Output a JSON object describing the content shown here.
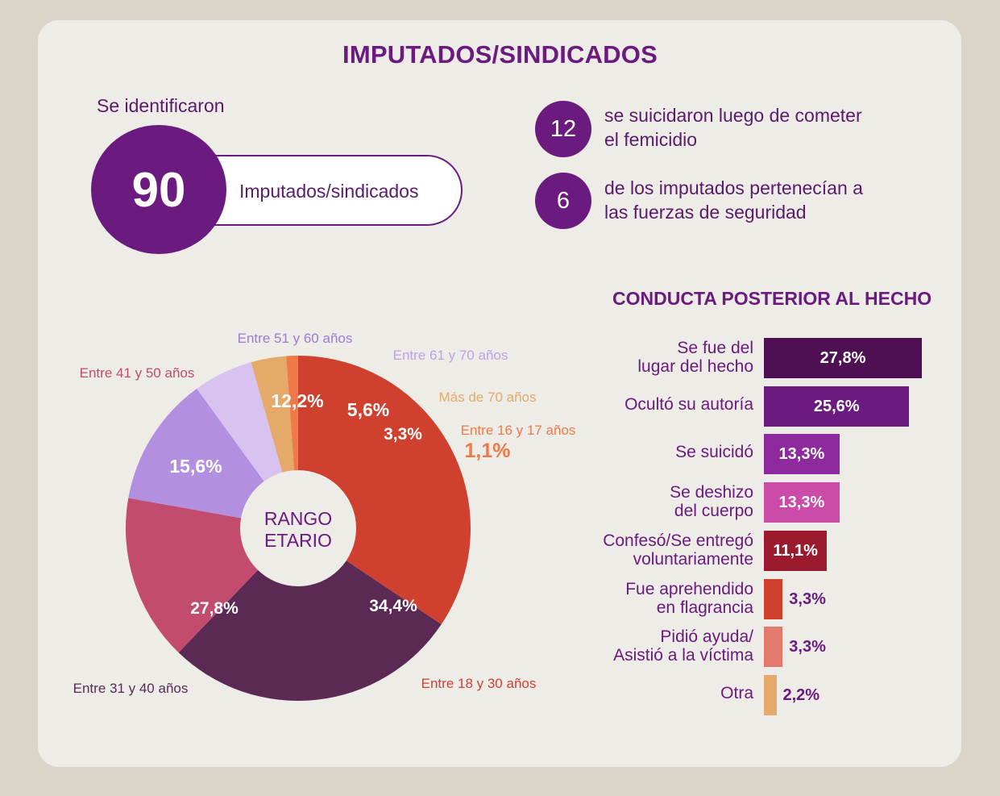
{
  "title": "IMPUTADOS/SINDICADOS",
  "identified": {
    "intro": "Se identificaron",
    "count": "90",
    "label": "Imputados/sindicados"
  },
  "stats": [
    {
      "value": "12",
      "line1": "se suicidaron luego de cometer",
      "line2": "el femicidio"
    },
    {
      "value": "6",
      "line1": "de los imputados pertenecían a",
      "line2": "las fuerzas de seguridad"
    }
  ],
  "chart_data": [
    {
      "type": "pie",
      "center_label_line1": "RANGO",
      "center_label_line2": "ETARIO",
      "slices": [
        {
          "category": "Entre 18 y 30 años",
          "value": 34.4,
          "label": "34,4%",
          "color": "#d0402e"
        },
        {
          "category": "Entre 31 y 40 años",
          "value": 27.8,
          "label": "27,8%",
          "color": "#5a2a55"
        },
        {
          "category": "Entre 41 y 50 años",
          "value": 15.6,
          "label": "15,6%",
          "color": "#c24b6e"
        },
        {
          "category": "Entre 51 y 60 años",
          "value": 12.2,
          "label": "12,2%",
          "color": "#b38fdf"
        },
        {
          "category": "Entre 61 y 70 años",
          "value": 5.6,
          "label": "5,6%",
          "color": "#d8c2f0"
        },
        {
          "category": "Más de 70 años",
          "value": 3.3,
          "label": "3,3%",
          "color": "#e5a96a"
        },
        {
          "category": "Entre 16 y 17 años",
          "value": 1.1,
          "label": "1,1%",
          "color": "#ee7a4a"
        }
      ]
    },
    {
      "type": "bar",
      "title": "CONDUCTA POSTERIOR AL HECHO",
      "orientation": "horizontal",
      "bars": [
        {
          "line1": "Se fue del",
          "line2": "lugar del hecho",
          "value": 27.8,
          "label": "27,8%",
          "color": "#4e1052"
        },
        {
          "line1": "Ocultó su autoría",
          "line2": "",
          "value": 25.6,
          "label": "25,6%",
          "color": "#6b1a80"
        },
        {
          "line1": "Se suicidó",
          "line2": "",
          "value": 13.3,
          "label": "13,3%",
          "color": "#8f2a9e"
        },
        {
          "line1": "Se deshizo",
          "line2": "del cuerpo",
          "value": 13.3,
          "label": "13,3%",
          "color": "#cc4aa8"
        },
        {
          "line1": "Confesó/Se entregó",
          "line2": "voluntariamente",
          "value": 11.1,
          "label": "11,1%",
          "color": "#9c1a2e"
        },
        {
          "line1": "Fue aprehendido",
          "line2": "en flagrancia",
          "value": 3.3,
          "label": "3,3%",
          "color": "#d0402e"
        },
        {
          "line1": "Pidió ayuda/",
          "line2": "Asistió a la víctima",
          "value": 3.3,
          "label": "3,3%",
          "color": "#e47a6e"
        },
        {
          "line1": "Otra",
          "line2": "",
          "value": 2.2,
          "label": "2,2%",
          "color": "#e5a96a"
        }
      ]
    }
  ]
}
